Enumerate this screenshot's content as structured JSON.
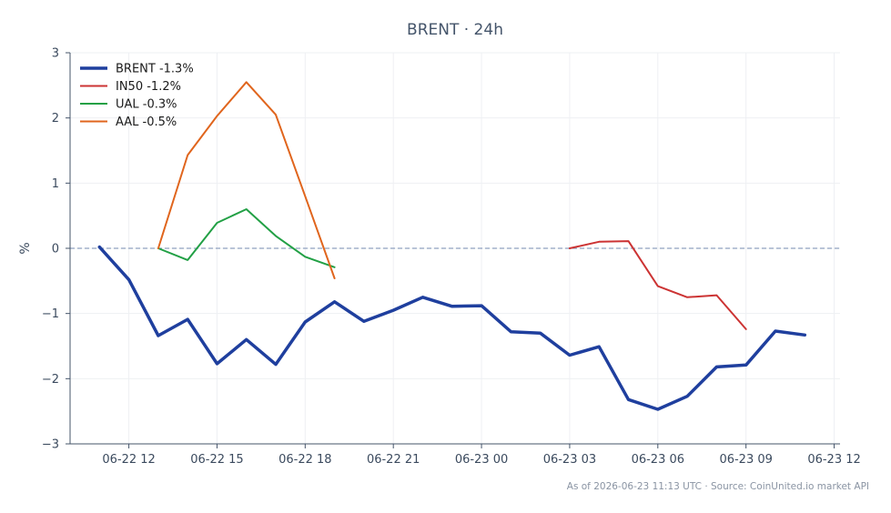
{
  "chart_data": {
    "type": "line",
    "title": "BRENT · 24h",
    "xlabel": "",
    "ylabel": "%",
    "ylim": [
      -3,
      3
    ],
    "y_ticks": [
      -3,
      -2,
      -1,
      0,
      1,
      2,
      3
    ],
    "y_tick_labels": [
      "−3",
      "−2",
      "−1",
      "0",
      "1",
      "2",
      "3"
    ],
    "x_ticks": [
      {
        "hours": 12,
        "label": "06-22 12"
      },
      {
        "hours": 15,
        "label": "06-22 15"
      },
      {
        "hours": 18,
        "label": "06-22 18"
      },
      {
        "hours": 21,
        "label": "06-22 21"
      },
      {
        "hours": 24,
        "label": "06-23 00"
      },
      {
        "hours": 27,
        "label": "06-23 03"
      },
      {
        "hours": 30,
        "label": "06-23 06"
      },
      {
        "hours": 33,
        "label": "06-23 09"
      },
      {
        "hours": 36,
        "label": "06-23 12"
      }
    ],
    "xlim_hours": [
      10,
      36.2
    ],
    "grid": true,
    "zero_line": true,
    "legend_position": "top-left",
    "series": [
      {
        "name": "BRENT -1.3%",
        "color": "#1f3f9e",
        "width": 3.5,
        "x": [
          11,
          12,
          13,
          14,
          15,
          16,
          17,
          18,
          19,
          20,
          21,
          22,
          23,
          24,
          25,
          26,
          27,
          28,
          29,
          30,
          31,
          32,
          33,
          34,
          35
        ],
        "y": [
          0.02,
          -0.48,
          -1.34,
          -1.09,
          -1.77,
          -1.4,
          -1.78,
          -1.13,
          -0.82,
          -1.12,
          -0.95,
          -0.75,
          -0.89,
          -0.88,
          -1.28,
          -1.3,
          -1.64,
          -1.51,
          -2.32,
          -2.47,
          -2.27,
          -1.82,
          -1.79,
          -1.27,
          -1.33
        ]
      },
      {
        "name": "IN50 -1.2%",
        "color": "#cc3333",
        "width": 2,
        "x": [
          27,
          28,
          29,
          30,
          31,
          32,
          33
        ],
        "y": [
          0.0,
          0.1,
          0.11,
          -0.58,
          -0.75,
          -0.72,
          -1.24
        ]
      },
      {
        "name": "UAL -0.3%",
        "color": "#22a045",
        "width": 2,
        "x": [
          13,
          14,
          15,
          16,
          17,
          18,
          19
        ],
        "y": [
          0.0,
          -0.18,
          0.39,
          0.6,
          0.19,
          -0.13,
          -0.29
        ]
      },
      {
        "name": "AAL -0.5%",
        "color": "#e0651d",
        "width": 2,
        "x": [
          13,
          14,
          15,
          16,
          17,
          18,
          19
        ],
        "y": [
          0.0,
          1.43,
          2.03,
          2.55,
          2.05,
          0.8,
          -0.46
        ]
      }
    ]
  },
  "footer": "As of 2026-06-23 11:13 UTC · Source: CoinUnited.io market API"
}
